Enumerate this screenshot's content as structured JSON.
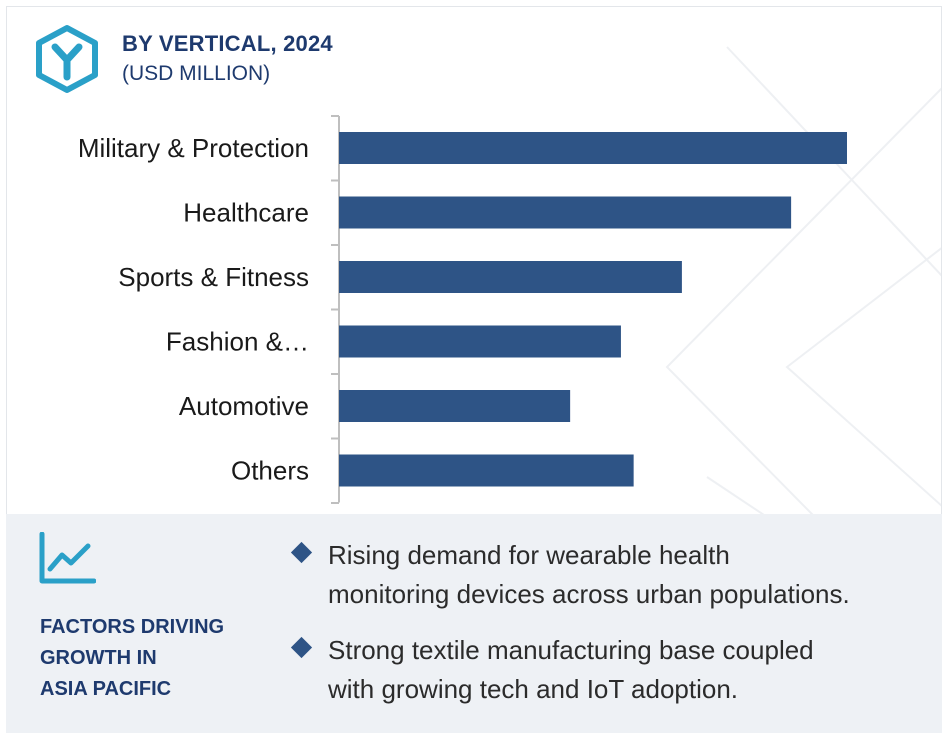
{
  "header": {
    "title": "BY VERTICAL, 2024",
    "subtitle": "(USD MILLION)",
    "logo_icon": "hexagon-y-logo-icon"
  },
  "colors": {
    "bar": "#2e5486",
    "title": "#1e3a6e",
    "logo": "#2aa0c8",
    "footer_bg": "#eef1f5",
    "axis": "#bfbfbf"
  },
  "chart_data": {
    "type": "bar",
    "orientation": "horizontal",
    "categories": [
      "Military & Protection",
      "Healthcare",
      "Sports & Fitness",
      "Fashion &…",
      "Automotive",
      "Others"
    ],
    "values": [
      100,
      89,
      67.5,
      55.5,
      45.5,
      58
    ],
    "title": "BY VERTICAL, 2024",
    "subtitle": "(USD MILLION)",
    "xlim": [
      0,
      100
    ],
    "value_axis_labels": false,
    "grid": false,
    "legend": "none"
  },
  "footer": {
    "icon": "trend-line-icon",
    "heading_lines": [
      "FACTORS DRIVING",
      "GROWTH IN",
      "ASIA PACIFIC"
    ],
    "bullet_icon": "diamond-bullet-icon",
    "bullets": [
      {
        "lines": [
          "Rising demand for wearable health",
          "monitoring devices across urban populations."
        ]
      },
      {
        "lines": [
          "Strong textile manufacturing base coupled",
          "with growing tech and IoT adoption."
        ]
      }
    ]
  }
}
